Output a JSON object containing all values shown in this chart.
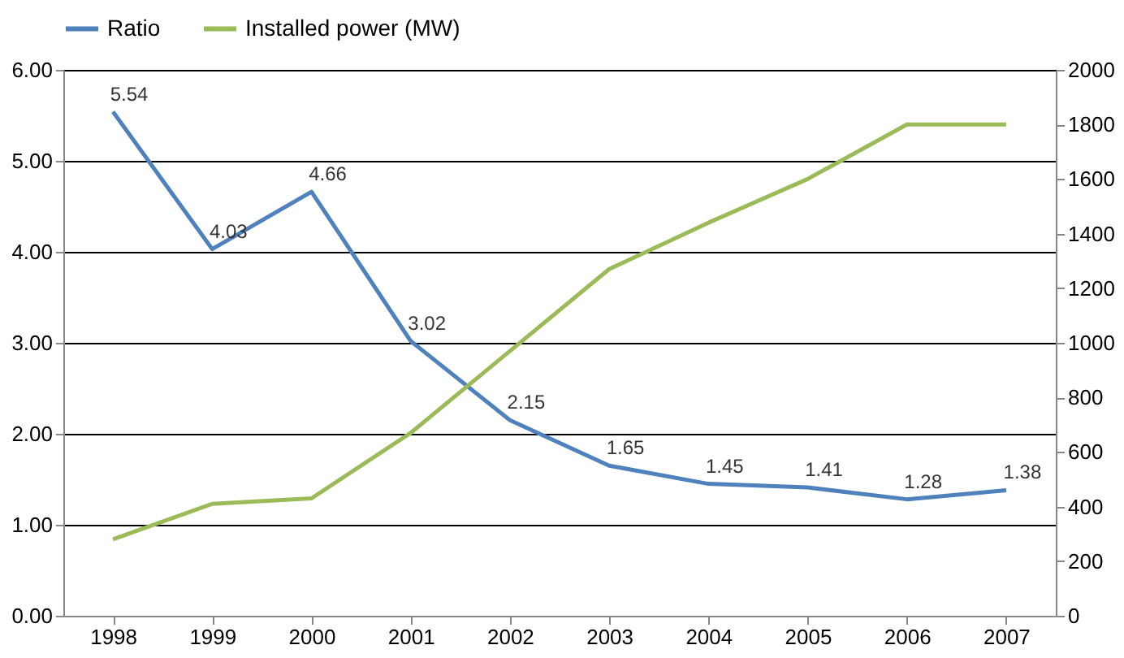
{
  "chart_data": {
    "type": "line",
    "categories": [
      "1998",
      "1999",
      "2000",
      "2001",
      "2002",
      "2003",
      "2004",
      "2005",
      "2006",
      "2007"
    ],
    "series": [
      {
        "name": "Ratio",
        "color": "#4f81bd",
        "values": [
          5.54,
          4.03,
          4.66,
          3.02,
          2.15,
          1.65,
          1.45,
          1.41,
          1.28,
          1.38
        ],
        "value_labels": [
          "5.54",
          "4.03",
          "4.66",
          "3.02",
          "2.15",
          "1.65",
          "1.45",
          "1.41",
          "1.28",
          "1.38"
        ]
      },
      {
        "name": "Installed power (MW)",
        "color": "#9bbb59",
        "axis": "y2",
        "values": [
          280,
          410,
          430,
          670,
          970,
          1270,
          1440,
          1600,
          1800,
          1800
        ]
      }
    ],
    "ylim": [
      0,
      6
    ],
    "yticks": [
      {
        "value": 0,
        "label": "0.00"
      },
      {
        "value": 1,
        "label": "1.00"
      },
      {
        "value": 2,
        "label": "2.00"
      },
      {
        "value": 3,
        "label": "3.00"
      },
      {
        "value": 4,
        "label": "4.00"
      },
      {
        "value": 5,
        "label": "5.00"
      },
      {
        "value": 6,
        "label": "6.00"
      }
    ],
    "y2lim": [
      0,
      2000
    ],
    "y2ticks": [
      0,
      200,
      400,
      600,
      800,
      1000,
      1200,
      1400,
      1600,
      1800,
      2000
    ],
    "grid": "y",
    "legend": "top",
    "marker": "none",
    "line_style": "solid"
  }
}
